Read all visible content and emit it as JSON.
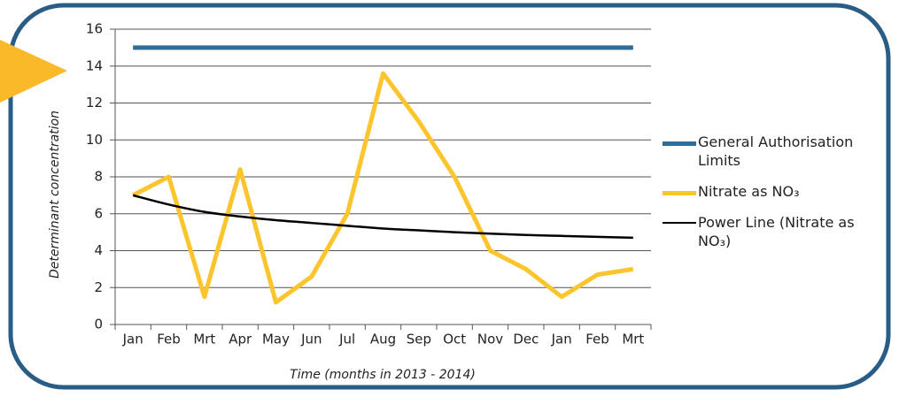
{
  "chart_data": {
    "type": "line",
    "xlabel": "Time (months in 2013 - 2014)",
    "ylabel": "Determinant concentration",
    "categories": [
      "Jan",
      "Feb",
      "Mrt",
      "Apr",
      "May",
      "Jun",
      "Jul",
      "Aug",
      "Sep",
      "Oct",
      "Nov",
      "Dec",
      "Jan",
      "Feb",
      "Mrt"
    ],
    "series": [
      {
        "name": "General Authorisation Limits",
        "color": "#2e6d9a",
        "values": [
          15,
          15,
          15,
          15,
          15,
          15,
          15,
          15,
          15,
          15,
          15,
          15,
          15,
          15,
          15
        ]
      },
      {
        "name": "Nitrate as NO₃",
        "color": "#fcc42d",
        "values": [
          7.0,
          8.0,
          1.5,
          8.4,
          1.2,
          2.6,
          6.0,
          13.6,
          11.0,
          8.0,
          4.0,
          3.0,
          1.5,
          2.7,
          3.0
        ]
      },
      {
        "name": "Power Line (Nitrate as NO₃)",
        "color": "#000000",
        "values": [
          7.0,
          6.5,
          6.1,
          5.85,
          5.65,
          5.5,
          5.35,
          5.2,
          5.1,
          5.0,
          4.92,
          4.85,
          4.8,
          4.75,
          4.7
        ]
      }
    ],
    "ylim": [
      0,
      16
    ],
    "yticks": [
      0,
      2,
      4,
      6,
      8,
      10,
      12,
      14,
      16
    ],
    "grid": true
  }
}
